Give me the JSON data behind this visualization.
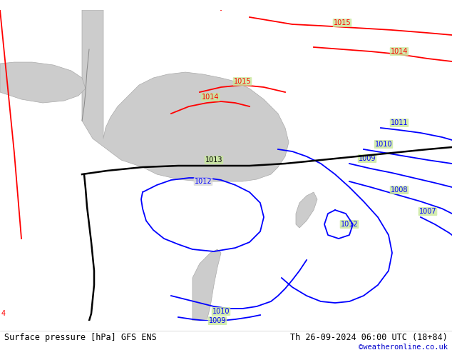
{
  "title_left": "Surface pressure [hPa] GFS ENS",
  "title_right": "Th 26-09-2024 06:00 UTC (18+84)",
  "credit": "©weatheronline.co.uk",
  "bg_land_color": "#c8e89a",
  "bg_sea_color": "#d8d8d8",
  "fig_width": 6.34,
  "fig_height": 4.9,
  "dpi": 100,
  "bottom_bar_color": "#f0f0f0",
  "bottom_bar_height": 0.055
}
